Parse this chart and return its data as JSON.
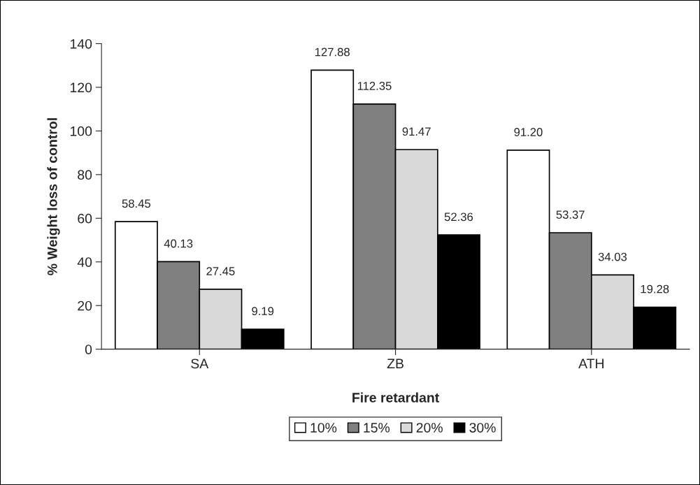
{
  "chart_data": {
    "type": "bar",
    "xlabel": "Fire retardant",
    "ylabel": "% Weight loss of control",
    "categories": [
      "SA",
      "ZB",
      "ATH"
    ],
    "series": [
      {
        "name": "10%",
        "color": "#ffffff",
        "values": [
          58.45,
          127.88,
          91.2
        ],
        "value_labels": [
          "58.45",
          "127.88",
          "91.20"
        ]
      },
      {
        "name": "15%",
        "color": "#808080",
        "values": [
          40.13,
          112.35,
          53.37
        ],
        "value_labels": [
          "40.13",
          "112.35",
          "53.37"
        ]
      },
      {
        "name": "20%",
        "color": "#d9d9d9",
        "values": [
          27.45,
          91.47,
          34.03
        ],
        "value_labels": [
          "27.45",
          "91.47",
          "34.03"
        ]
      },
      {
        "name": "30%",
        "color": "#000000",
        "values": [
          9.19,
          52.36,
          19.28
        ],
        "value_labels": [
          "9.19",
          "52.36",
          "19.28"
        ]
      }
    ],
    "ylim": [
      0,
      140
    ],
    "yticks": [
      0,
      20,
      40,
      60,
      80,
      100,
      120,
      140
    ],
    "grid": false,
    "legend": "bottom"
  }
}
